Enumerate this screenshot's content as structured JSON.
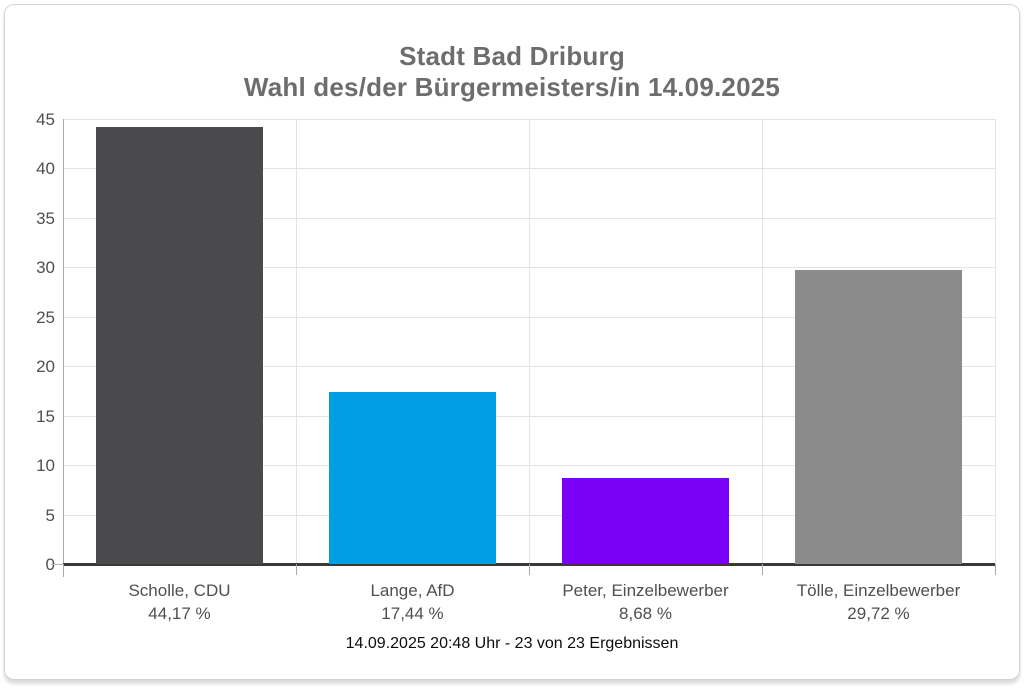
{
  "chart_data": {
    "type": "bar",
    "title_line1": "Stadt Bad Driburg",
    "title_line2": "Wahl des/der Bürgermeisters/in 14.09.2025",
    "categories": [
      "Scholle, CDU",
      "Lange, AfD",
      "Peter, Einzelbewerber",
      "Tölle, Einzelbewerber"
    ],
    "values": [
      44.17,
      17.44,
      8.68,
      29.72
    ],
    "value_labels": [
      "44,17 %",
      "17,44 %",
      "8,68 %",
      "29,72 %"
    ],
    "bar_colors": [
      "#4a4a4c",
      "#009ee3",
      "#7a00f8",
      "#8b8b8b"
    ],
    "y_ticks": [
      0,
      5,
      10,
      15,
      20,
      25,
      30,
      35,
      40,
      45
    ],
    "ylim": [
      0,
      45
    ],
    "xlabel": "",
    "ylabel": "",
    "grid": true,
    "legend": false,
    "footer": "14.09.2025 20:48 Uhr - 23 von 23 Ergebnissen",
    "colors": {
      "title": "#6d6d6d",
      "axis_labels": "#4f4f4f",
      "gridline": "#e4e4e4",
      "axis_line": "#383838",
      "footer_text": "#0d0d0d",
      "card_border": "#d4d4d4"
    }
  }
}
